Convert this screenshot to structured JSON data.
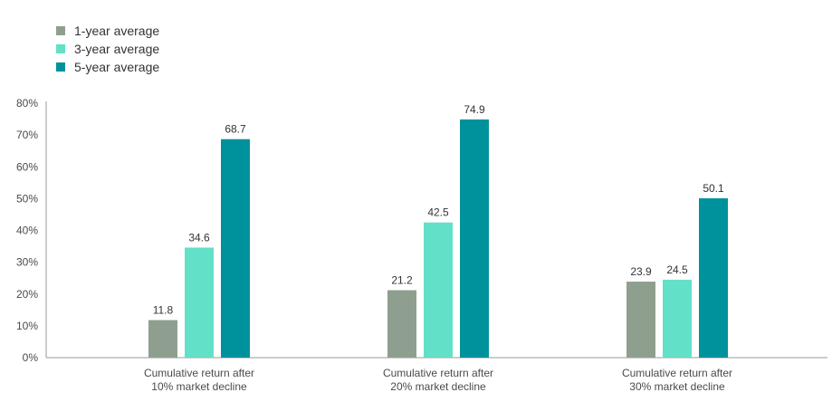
{
  "legend": [
    {
      "label": "1-year average",
      "color": "#8f9f8f"
    },
    {
      "label": "3-year average",
      "color": "#62e0c8"
    },
    {
      "label": "5-year average",
      "color": "#00929c"
    }
  ],
  "chart_data": {
    "type": "bar",
    "categories": [
      [
        "Cumulative return after",
        "10% market decline"
      ],
      [
        "Cumulative return after",
        "20% market decline"
      ],
      [
        "Cumulative return after",
        "30% market decline"
      ]
    ],
    "series": [
      {
        "name": "1-year average",
        "color": "#8f9f8f",
        "values": [
          11.8,
          21.2,
          23.9
        ]
      },
      {
        "name": "3-year average",
        "color": "#62e0c8",
        "values": [
          34.6,
          42.5,
          24.5
        ]
      },
      {
        "name": "5-year average",
        "color": "#00929c",
        "values": [
          68.7,
          74.9,
          50.1
        ]
      }
    ],
    "yticks": [
      "0%",
      "10%",
      "20%",
      "30%",
      "40%",
      "50%",
      "60%",
      "70%",
      "80%"
    ],
    "ylim": [
      0,
      80
    ],
    "title": "",
    "xlabel": "",
    "ylabel": "",
    "grid": false,
    "legend_position": "top-left"
  }
}
